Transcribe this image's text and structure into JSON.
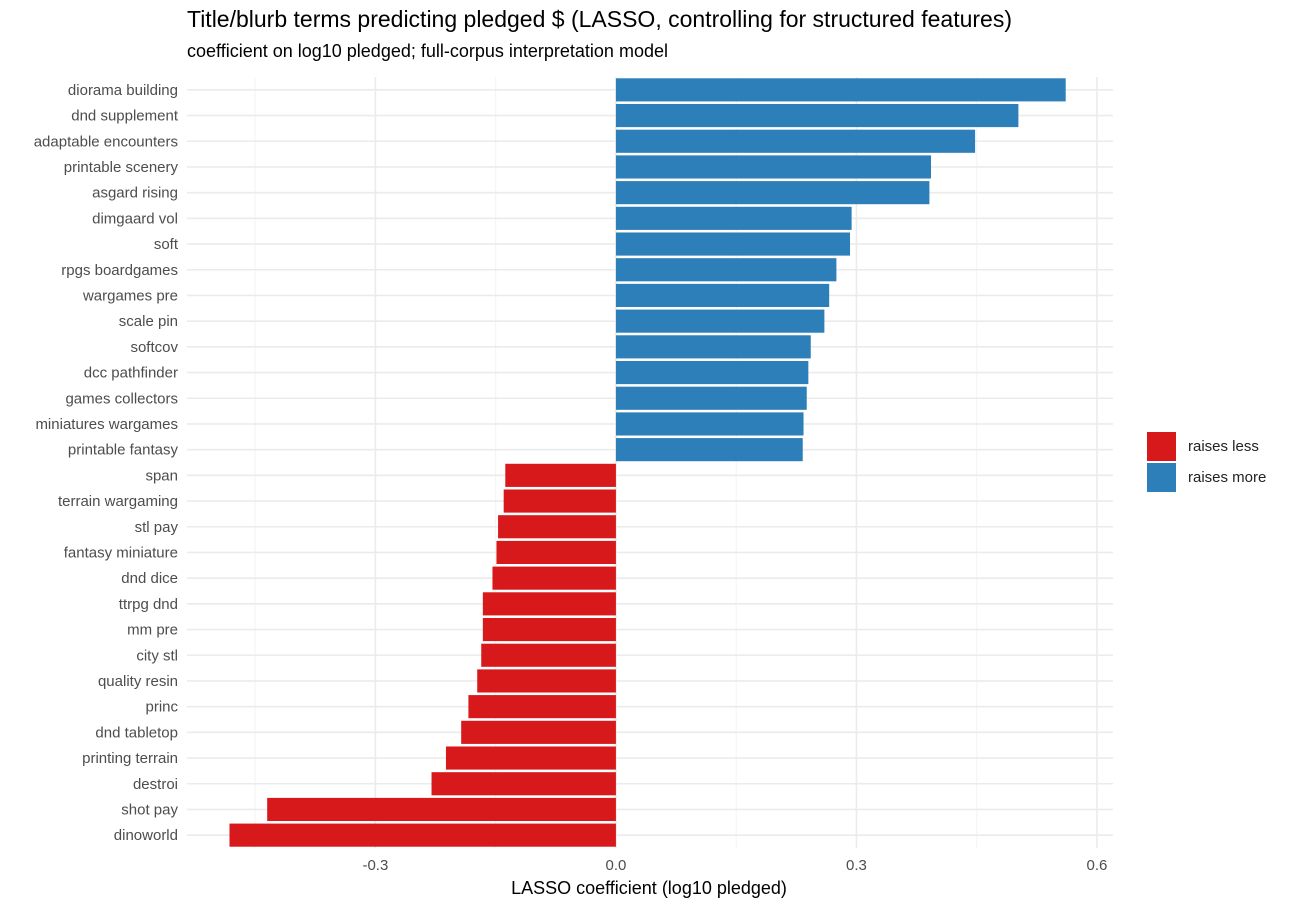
{
  "chart_data": {
    "type": "bar",
    "orientation": "horizontal",
    "title": "Title/blurb terms predicting pledged $ (LASSO, controlling for structured features)",
    "subtitle": "coefficient on log10 pledged; full-corpus interpretation model",
    "xlabel": "LASSO coefficient (log10 pledged)",
    "ylabel": "",
    "xlim": [
      -0.535,
      0.62
    ],
    "xticks": [
      -0.3,
      0.0,
      0.3,
      0.6
    ],
    "xtick_labels": [
      "-0.3",
      "0.0",
      "0.3",
      "0.6"
    ],
    "grid": true,
    "legend_position": "right",
    "colors": {
      "raises less": "#d7191c",
      "raises more": "#2c7fb8"
    },
    "legend": [
      {
        "label": "raises less",
        "color": "#d7191c"
      },
      {
        "label": "raises more",
        "color": "#2c7fb8"
      }
    ],
    "categories": [
      "diorama building",
      "dnd supplement",
      "adaptable encounters",
      "printable scenery",
      "asgard rising",
      "dimgaard vol",
      "soft",
      "rpgs boardgames",
      "wargames pre",
      "scale pin",
      "softcov",
      "dcc pathfinder",
      "games collectors",
      "miniatures wargames",
      "printable fantasy",
      "span",
      "terrain wargaming",
      "stl pay",
      "fantasy miniature",
      "dnd dice",
      "ttrpg dnd",
      "mm pre",
      "city stl",
      "quality resin",
      "princ",
      "dnd tabletop",
      "printing terrain",
      "destroi",
      "shot pay",
      "dinoworld"
    ],
    "values": [
      0.561,
      0.502,
      0.448,
      0.393,
      0.391,
      0.294,
      0.292,
      0.275,
      0.266,
      0.26,
      0.243,
      0.24,
      0.238,
      0.234,
      0.233,
      -0.138,
      -0.14,
      -0.147,
      -0.149,
      -0.154,
      -0.166,
      -0.166,
      -0.168,
      -0.173,
      -0.184,
      -0.193,
      -0.212,
      -0.23,
      -0.435,
      -0.482
    ],
    "groups": [
      "raises more",
      "raises more",
      "raises more",
      "raises more",
      "raises more",
      "raises more",
      "raises more",
      "raises more",
      "raises more",
      "raises more",
      "raises more",
      "raises more",
      "raises more",
      "raises more",
      "raises more",
      "raises less",
      "raises less",
      "raises less",
      "raises less",
      "raises less",
      "raises less",
      "raises less",
      "raises less",
      "raises less",
      "raises less",
      "raises less",
      "raises less",
      "raises less",
      "raises less",
      "raises less"
    ]
  }
}
